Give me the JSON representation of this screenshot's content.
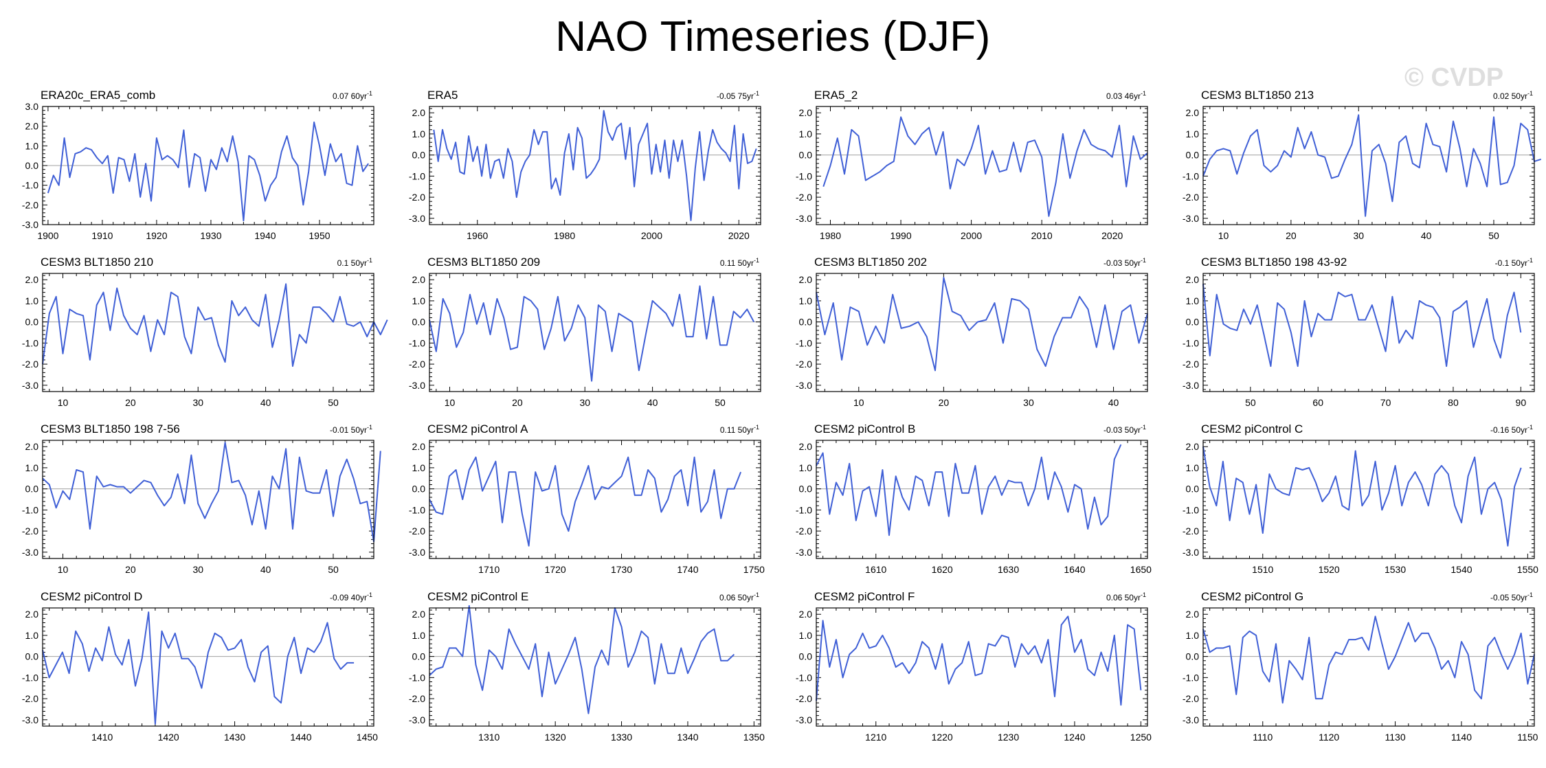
{
  "title": "NAO Timeseries (DJF)",
  "watermark": "© CVDP",
  "colors": {
    "line": "#3f5fd6",
    "zero": "#a0a0a0",
    "frame": "#000000"
  },
  "chart_data": [
    {
      "type": "line",
      "title": "ERA20c_ERA5_comb",
      "trend": "0.07 60yr",
      "trend_exp": "-1",
      "x_start": 1900,
      "xlim": [
        1899,
        1960
      ],
      "ylim": [
        -3.0,
        3.0
      ],
      "yticks": [
        -3,
        -2,
        -1,
        0,
        1,
        2,
        3
      ],
      "xticks": [
        1900,
        1910,
        1920,
        1930,
        1940,
        1950
      ],
      "values": [
        -1.4,
        -0.5,
        -1.0,
        1.4,
        -0.6,
        0.6,
        0.7,
        0.9,
        0.8,
        0.4,
        0.1,
        0.5,
        -1.4,
        0.4,
        0.3,
        -0.8,
        0.6,
        -1.6,
        0.1,
        -1.8,
        1.4,
        0.3,
        0.5,
        0.3,
        -0.1,
        1.8,
        -1.1,
        0.6,
        0.4,
        -1.3,
        0.3,
        -0.2,
        0.9,
        0.2,
        1.5,
        0.2,
        -2.8,
        0.5,
        0.3,
        -0.5,
        -1.8,
        -1.0,
        -0.6,
        0.7,
        1.5,
        0.4,
        0.0,
        -2.0,
        -0.3,
        2.2,
        1.0,
        -0.5,
        1.1,
        0.2,
        0.6,
        -0.9,
        -1.0,
        1.0,
        -0.3,
        0.1
      ]
    },
    {
      "type": "line",
      "title": "ERA5",
      "trend": "-0.05 75yr",
      "trend_exp": "-1",
      "x_start": 1950,
      "xlim": [
        1949,
        2025
      ],
      "ylim": [
        -3.3,
        2.3
      ],
      "yticks": [
        -3,
        -2,
        -1,
        0,
        1,
        2
      ],
      "xticks": [
        1960,
        1980,
        2000,
        2020
      ],
      "values": [
        1.2,
        -0.3,
        1.2,
        0.3,
        -0.2,
        0.6,
        -0.8,
        -0.9,
        0.9,
        -0.3,
        0.4,
        -1.0,
        0.5,
        -1.1,
        -0.3,
        -0.2,
        -1.1,
        0.3,
        -0.3,
        -2.0,
        -0.8,
        -0.3,
        0.0,
        1.2,
        0.5,
        1.1,
        1.1,
        -1.6,
        -1.1,
        -1.9,
        0.1,
        1.0,
        -0.7,
        1.3,
        0.8,
        -1.1,
        -0.9,
        -0.6,
        -0.2,
        2.1,
        1.1,
        0.7,
        1.3,
        1.5,
        -0.2,
        1.3,
        -1.5,
        0.5,
        1.0,
        1.5,
        -0.9,
        0.5,
        -0.8,
        0.7,
        -1.1,
        0.7,
        -0.3,
        0.7,
        -1.0,
        -3.1,
        -0.6,
        1.1,
        -1.2,
        0.2,
        1.2,
        0.6,
        0.3,
        0.1,
        -0.3,
        1.4,
        -1.6,
        1.0,
        -0.4,
        -0.3,
        0.3
      ]
    },
    {
      "type": "line",
      "title": "ERA5_2",
      "trend": "0.03 46yr",
      "trend_exp": "-1",
      "x_start": 1979,
      "xlim": [
        1978,
        2025
      ],
      "ylim": [
        -3.3,
        2.3
      ],
      "yticks": [
        -3,
        -2,
        -1,
        0,
        1,
        2
      ],
      "xticks": [
        1980,
        1990,
        2000,
        2010,
        2020
      ],
      "values": [
        -1.5,
        -0.5,
        0.8,
        -0.9,
        1.2,
        0.9,
        -1.2,
        -1.0,
        -0.8,
        -0.5,
        -0.3,
        1.8,
        0.9,
        0.5,
        1.0,
        1.3,
        0.0,
        1.1,
        -1.6,
        -0.2,
        -0.5,
        0.3,
        1.4,
        -0.9,
        0.2,
        -0.8,
        -0.7,
        0.6,
        -0.8,
        0.6,
        0.7,
        -0.1,
        -2.9,
        -1.3,
        1.0,
        -1.1,
        0.2,
        1.2,
        0.5,
        0.3,
        0.2,
        -0.1,
        1.4,
        -1.5,
        0.9,
        -0.2,
        0.1
      ]
    },
    {
      "type": "line",
      "title": "CESM3 BLT1850 213",
      "trend": "0.02 50yr",
      "trend_exp": "-1",
      "x_start": 7,
      "xlim": [
        7,
        56
      ],
      "ylim": [
        -3.3,
        2.3
      ],
      "yticks": [
        -3,
        -2,
        -1,
        0,
        1,
        2
      ],
      "xticks": [
        10,
        20,
        30,
        40,
        50
      ],
      "values": [
        -1.0,
        -0.2,
        0.2,
        0.3,
        0.2,
        -0.9,
        0.1,
        0.9,
        1.2,
        -0.5,
        -0.8,
        -0.5,
        0.2,
        -0.1,
        1.3,
        0.3,
        1.1,
        0.0,
        -0.1,
        -1.1,
        -1.0,
        -0.2,
        0.5,
        1.9,
        -2.9,
        0.2,
        0.5,
        -0.4,
        -2.2,
        0.6,
        0.9,
        -0.4,
        -0.6,
        1.5,
        0.5,
        0.4,
        -0.8,
        1.6,
        0.3,
        -1.5,
        0.3,
        -0.4,
        -1.5,
        1.8,
        -1.4,
        -1.3,
        -0.5,
        1.5,
        1.2,
        -0.3,
        -0.2
      ]
    },
    {
      "type": "line",
      "title": "CESM3 BLT1850 210",
      "trend": "0.1 50yr",
      "trend_exp": "-1",
      "x_start": 7,
      "xlim": [
        7,
        56
      ],
      "ylim": [
        -3.3,
        2.3
      ],
      "yticks": [
        -3,
        -2,
        -1,
        0,
        1,
        2
      ],
      "xticks": [
        10,
        20,
        30,
        40,
        50
      ],
      "values": [
        -2.0,
        0.4,
        1.2,
        -1.5,
        0.6,
        0.4,
        0.3,
        -1.8,
        0.8,
        1.4,
        -0.4,
        1.6,
        0.3,
        -0.3,
        -0.6,
        0.3,
        -1.4,
        0.1,
        -0.6,
        1.4,
        1.2,
        -0.7,
        -1.5,
        0.7,
        0.1,
        0.2,
        -1.1,
        -1.9,
        1.0,
        0.3,
        0.7,
        0.1,
        -0.2,
        1.3,
        -1.2,
        0.1,
        1.8,
        -2.1,
        -0.6,
        -1.0,
        0.7,
        0.7,
        0.4,
        0.0,
        1.2,
        -0.1,
        -0.2,
        0.0,
        -0.7,
        0.0,
        -0.6,
        0.1
      ]
    },
    {
      "type": "line",
      "title": "CESM3 BLT1850 209",
      "trend": "0.11 50yr",
      "trend_exp": "-1",
      "x_start": 7,
      "xlim": [
        7,
        56
      ],
      "ylim": [
        -3.3,
        2.3
      ],
      "yticks": [
        -3,
        -2,
        -1,
        0,
        1,
        2
      ],
      "xticks": [
        10,
        20,
        30,
        40,
        50
      ],
      "values": [
        0.1,
        -1.4,
        1.1,
        0.4,
        -1.2,
        -0.5,
        1.3,
        -0.1,
        0.9,
        -0.6,
        1.1,
        0.2,
        -1.3,
        -1.2,
        1.2,
        1.0,
        0.6,
        -1.3,
        -0.3,
        1.2,
        -0.9,
        -0.3,
        0.8,
        0.2,
        -2.8,
        0.8,
        0.5,
        -1.4,
        0.4,
        0.2,
        0.0,
        -2.3,
        -0.6,
        1.0,
        0.7,
        0.4,
        -0.2,
        1.3,
        -0.7,
        -0.7,
        1.7,
        -0.8,
        1.2,
        -1.1,
        -1.1,
        0.5,
        0.2,
        0.6,
        0.0
      ]
    },
    {
      "type": "line",
      "title": "CESM3 BLT1850 202",
      "trend": "-0.03 50yr",
      "trend_exp": "-1",
      "x_start": 5,
      "xlim": [
        5,
        44
      ],
      "ylim": [
        -3.3,
        2.3
      ],
      "yticks": [
        -3,
        -2,
        -1,
        0,
        1,
        2
      ],
      "xticks": [
        10,
        20,
        30,
        40
      ],
      "values": [
        1.4,
        -0.6,
        0.9,
        -1.8,
        0.7,
        0.5,
        -1.1,
        -0.2,
        -1.0,
        1.3,
        -0.3,
        -0.2,
        0.0,
        -0.7,
        -2.3,
        2.1,
        0.5,
        0.3,
        -0.4,
        0.0,
        0.1,
        0.9,
        -1.0,
        1.1,
        1.0,
        0.6,
        -1.3,
        -2.1,
        -0.7,
        0.2,
        0.2,
        1.2,
        0.6,
        -1.2,
        0.8,
        -1.3,
        0.5,
        0.8,
        -1.0,
        0.4
      ]
    },
    {
      "type": "line",
      "title": "CESM3 BLT1850 198 43-92",
      "trend": "-0.1 50yr",
      "trend_exp": "-1",
      "x_start": 43,
      "xlim": [
        43,
        92
      ],
      "ylim": [
        -3.3,
        2.3
      ],
      "yticks": [
        -3,
        -2,
        -1,
        0,
        1,
        2
      ],
      "xticks": [
        50,
        60,
        70,
        80,
        90
      ],
      "values": [
        1.8,
        -1.6,
        1.3,
        -0.1,
        -0.3,
        -0.4,
        0.6,
        -0.1,
        0.8,
        -0.6,
        -2.1,
        0.9,
        0.6,
        -0.5,
        -2.1,
        1.0,
        -0.7,
        0.4,
        0.1,
        0.1,
        1.4,
        1.2,
        1.3,
        0.1,
        0.1,
        0.8,
        -0.3,
        -1.4,
        1.2,
        -1.0,
        -0.4,
        -0.8,
        1.0,
        0.8,
        0.7,
        0.2,
        -2.1,
        0.5,
        0.7,
        1.0,
        -1.2,
        0.0,
        1.1,
        -0.8,
        -1.7,
        0.3,
        1.4,
        -0.5
      ]
    },
    {
      "type": "line",
      "title": "CESM3 BLT1850 198 7-56",
      "trend": "-0.01 50yr",
      "trend_exp": "-1",
      "x_start": 7,
      "xlim": [
        7,
        56
      ],
      "ylim": [
        -3.3,
        2.3
      ],
      "yticks": [
        -3,
        -2,
        -1,
        0,
        1,
        2
      ],
      "xticks": [
        10,
        20,
        30,
        40,
        50
      ],
      "values": [
        0.5,
        0.2,
        -0.9,
        -0.1,
        -0.5,
        0.9,
        0.8,
        -1.9,
        0.6,
        0.1,
        0.2,
        0.1,
        0.1,
        -0.2,
        0.1,
        0.4,
        0.3,
        -0.3,
        -0.8,
        -0.4,
        0.7,
        -0.7,
        1.6,
        -0.7,
        -1.4,
        -0.7,
        -0.1,
        2.2,
        0.3,
        0.4,
        -0.3,
        -1.7,
        -0.1,
        -1.9,
        0.6,
        0.0,
        1.9,
        -1.9,
        1.5,
        -0.1,
        -0.2,
        -0.2,
        0.9,
        -1.3,
        0.6,
        1.4,
        0.5,
        -0.7,
        -0.6,
        -2.5,
        1.8
      ]
    },
    {
      "type": "line",
      "title": "CESM2 piControl A",
      "trend": "0.11 50yr",
      "trend_exp": "-1",
      "x_start": 1701,
      "xlim": [
        1701,
        1751
      ],
      "ylim": [
        -3.3,
        2.3
      ],
      "yticks": [
        -3,
        -2,
        -1,
        0,
        1,
        2
      ],
      "xticks": [
        1710,
        1720,
        1730,
        1740,
        1750
      ],
      "values": [
        -0.5,
        -1.1,
        -1.2,
        0.6,
        0.9,
        -0.5,
        0.9,
        1.5,
        -0.1,
        0.6,
        1.3,
        -1.6,
        0.8,
        0.8,
        -1.2,
        -2.7,
        0.8,
        -0.1,
        0.0,
        1.1,
        -1.2,
        -2.0,
        -0.6,
        0.2,
        1.1,
        -0.5,
        0.1,
        0.0,
        0.3,
        0.6,
        1.5,
        -0.3,
        -0.3,
        0.9,
        0.5,
        -1.1,
        -0.5,
        0.6,
        0.9,
        -0.8,
        1.5,
        -1.1,
        -0.6,
        0.9,
        -1.4,
        0.0,
        0.0,
        0.8
      ]
    },
    {
      "type": "line",
      "title": "CESM2 piControl B",
      "trend": "-0.03 50yr",
      "trend_exp": "-1",
      "x_start": 1601,
      "xlim": [
        1601,
        1651
      ],
      "ylim": [
        -3.3,
        2.3
      ],
      "yticks": [
        -3,
        -2,
        -1,
        0,
        1,
        2
      ],
      "xticks": [
        1610,
        1620,
        1630,
        1640,
        1650
      ],
      "values": [
        1.1,
        1.7,
        -1.2,
        0.3,
        -0.3,
        1.2,
        -1.5,
        -0.1,
        0.1,
        -1.3,
        0.9,
        -2.2,
        0.6,
        -0.4,
        -1.0,
        0.6,
        0.4,
        -0.8,
        0.8,
        0.8,
        -1.3,
        1.2,
        -0.2,
        -0.2,
        1.1,
        -1.2,
        0.1,
        0.6,
        -0.3,
        0.4,
        0.3,
        0.3,
        -0.8,
        0.0,
        1.5,
        -0.5,
        0.8,
        0.1,
        -1.1,
        0.2,
        0.0,
        -1.9,
        -0.4,
        -1.7,
        -1.3,
        1.4,
        2.1
      ]
    },
    {
      "type": "line",
      "title": "CESM2 piControl C",
      "trend": "-0.16 50yr",
      "trend_exp": "-1",
      "x_start": 1501,
      "xlim": [
        1501,
        1551
      ],
      "ylim": [
        -3.3,
        2.3
      ],
      "yticks": [
        -3,
        -2,
        -1,
        0,
        1,
        2
      ],
      "xticks": [
        1510,
        1520,
        1530,
        1540,
        1550
      ],
      "values": [
        2.0,
        0.1,
        -0.8,
        1.3,
        -1.5,
        0.5,
        0.3,
        -1.2,
        0.2,
        -2.1,
        0.7,
        0.0,
        -0.2,
        -0.3,
        1.0,
        0.9,
        1.0,
        0.3,
        -0.6,
        -0.2,
        0.6,
        -0.8,
        -1.0,
        1.8,
        -0.8,
        -0.3,
        1.3,
        -1.0,
        -0.2,
        1.1,
        -0.8,
        0.3,
        0.8,
        0.2,
        -0.8,
        0.7,
        1.1,
        0.7,
        -0.8,
        -1.6,
        0.6,
        1.5,
        -1.2,
        0.0,
        0.3,
        -0.5,
        -2.7,
        0.1,
        1.0
      ]
    },
    {
      "type": "line",
      "title": "CESM2 piControl D",
      "trend": "-0.09 40yr",
      "trend_exp": "-1",
      "x_start": 1401,
      "xlim": [
        1401,
        1451
      ],
      "ylim": [
        -3.3,
        2.3
      ],
      "yticks": [
        -3,
        -2,
        -1,
        0,
        1,
        2
      ],
      "xticks": [
        1410,
        1420,
        1430,
        1440,
        1450
      ],
      "values": [
        0.3,
        -1.0,
        -0.4,
        0.2,
        -0.8,
        1.2,
        0.6,
        -0.7,
        0.4,
        -0.2,
        1.4,
        0.1,
        -0.4,
        0.8,
        -1.4,
        -0.1,
        2.1,
        -3.2,
        1.2,
        0.4,
        1.1,
        -0.1,
        -0.1,
        -0.5,
        -1.5,
        0.2,
        1.1,
        0.9,
        0.3,
        0.4,
        0.8,
        -0.5,
        -1.2,
        0.2,
        0.5,
        -1.9,
        -2.2,
        0.0,
        0.9,
        -0.8,
        0.4,
        0.2,
        0.7,
        1.6,
        -0.1,
        -0.6,
        -0.3,
        -0.3
      ]
    },
    {
      "type": "line",
      "title": "CESM2 piControl E",
      "trend": "0.06 50yr",
      "trend_exp": "-1",
      "x_start": 1301,
      "xlim": [
        1301,
        1351
      ],
      "ylim": [
        -3.3,
        2.3
      ],
      "yticks": [
        -3,
        -2,
        -1,
        0,
        1,
        2
      ],
      "xticks": [
        1310,
        1320,
        1330,
        1340,
        1350
      ],
      "values": [
        -0.9,
        -0.6,
        -0.5,
        0.4,
        0.4,
        0.0,
        2.4,
        -0.4,
        -1.6,
        0.3,
        0.0,
        -0.6,
        1.3,
        0.6,
        0.0,
        -0.6,
        0.6,
        -1.9,
        0.2,
        -1.3,
        -0.6,
        0.1,
        0.9,
        -0.6,
        -2.7,
        -0.5,
        0.3,
        -0.4,
        2.3,
        1.4,
        -0.5,
        0.2,
        1.2,
        0.9,
        -1.3,
        0.6,
        -0.8,
        -0.8,
        0.4,
        -0.8,
        -0.1,
        0.7,
        1.1,
        1.3,
        -0.2,
        -0.2,
        0.1
      ]
    },
    {
      "type": "line",
      "title": "CESM2 piControl F",
      "trend": "0.06 50yr",
      "trend_exp": "-1",
      "x_start": 1201,
      "xlim": [
        1201,
        1251
      ],
      "ylim": [
        -3.3,
        2.3
      ],
      "yticks": [
        -3,
        -2,
        -1,
        0,
        1,
        2
      ],
      "xticks": [
        1210,
        1220,
        1230,
        1240,
        1250
      ],
      "values": [
        -2.1,
        1.7,
        -0.5,
        0.8,
        -1.0,
        0.1,
        0.4,
        1.1,
        0.4,
        0.5,
        1.0,
        0.4,
        -0.5,
        -0.3,
        -0.8,
        -0.3,
        0.7,
        0.4,
        -0.6,
        0.6,
        -1.3,
        -0.6,
        -0.3,
        0.7,
        -0.9,
        -0.8,
        0.6,
        0.5,
        1.0,
        0.9,
        -0.5,
        0.6,
        0.1,
        0.5,
        -0.3,
        0.8,
        -1.9,
        1.5,
        1.9,
        0.2,
        0.8,
        -0.6,
        -0.9,
        0.2,
        -0.7,
        1.0,
        -2.3,
        1.5,
        1.3,
        -1.6
      ]
    },
    {
      "type": "line",
      "title": "CESM2 piControl G",
      "trend": "-0.05 50yr",
      "trend_exp": "-1",
      "x_start": 1101,
      "xlim": [
        1101,
        1151
      ],
      "ylim": [
        -3.3,
        2.3
      ],
      "yticks": [
        -3,
        -2,
        -1,
        0,
        1,
        2
      ],
      "xticks": [
        1110,
        1120,
        1130,
        1140,
        1150
      ],
      "values": [
        1.3,
        0.2,
        0.4,
        0.4,
        0.5,
        -1.8,
        0.9,
        1.2,
        1.0,
        -0.7,
        -1.2,
        0.6,
        -2.2,
        -0.2,
        -0.6,
        -1.1,
        0.9,
        -2.0,
        -2.0,
        -0.4,
        0.2,
        0.1,
        0.8,
        0.8,
        0.9,
        0.3,
        1.9,
        0.6,
        -0.6,
        0.0,
        0.8,
        1.6,
        0.7,
        1.1,
        1.1,
        0.4,
        -0.6,
        -0.2,
        -1.0,
        0.7,
        0.1,
        -1.6,
        -2.0,
        0.5,
        0.9,
        0.1,
        -0.6,
        0.1,
        1.1,
        -1.3,
        0.1
      ]
    }
  ]
}
